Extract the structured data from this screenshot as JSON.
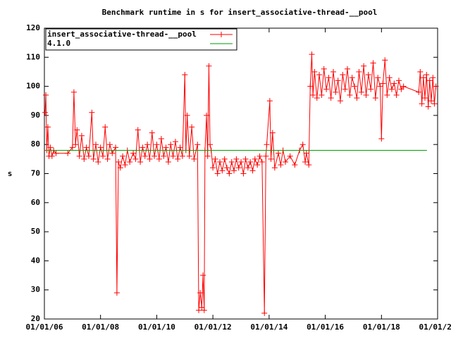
{
  "chart_data": {
    "type": "line",
    "title": "Benchmark runtime in s for insert_associative-thread-__pool",
    "y_label": "s",
    "xlim": [
      "2006-01-01",
      "2020-01-01"
    ],
    "xticks": [
      {
        "value": "2006-01-01",
        "label": "01/01/06"
      },
      {
        "value": "2008-01-01",
        "label": "01/01/08"
      },
      {
        "value": "2010-01-01",
        "label": "01/01/10"
      },
      {
        "value": "2012-01-01",
        "label": "01/01/12"
      },
      {
        "value": "2014-01-01",
        "label": "01/01/14"
      },
      {
        "value": "2016-01-01",
        "label": "01/01/16"
      },
      {
        "value": "2018-01-01",
        "label": "01/01/18"
      },
      {
        "value": "2020-01-01",
        "label": "01/01/20"
      }
    ],
    "ylim": [
      20,
      120
    ],
    "yticks": [
      20,
      30,
      40,
      50,
      60,
      70,
      80,
      90,
      100,
      110,
      120
    ],
    "legend": "top-left",
    "series": [
      {
        "name": "insert_associative-thread-__pool",
        "color": "#ff0000",
        "marker": "plus",
        "x": [
          "2006-01-10",
          "2006-01-20",
          "2006-02-01",
          "2006-02-15",
          "2006-03-01",
          "2006-03-20",
          "2006-04-10",
          "2006-05-01",
          "2006-06-01",
          "2006-11-01",
          "2007-01-01",
          "2007-01-20",
          "2007-02-10",
          "2007-03-01",
          "2007-04-01",
          "2007-05-01",
          "2007-06-01",
          "2007-07-01",
          "2007-08-01",
          "2007-09-10",
          "2007-10-01",
          "2007-11-01",
          "2007-12-01",
          "2008-01-01",
          "2008-02-01",
          "2008-03-01",
          "2008-04-01",
          "2008-05-01",
          "2008-06-01",
          "2008-07-15",
          "2008-08-01",
          "2008-08-20",
          "2008-09-15",
          "2008-10-15",
          "2008-11-15",
          "2008-12-15",
          "2009-01-15",
          "2009-03-01",
          "2009-04-01",
          "2009-05-01",
          "2009-06-01",
          "2009-07-01",
          "2009-08-01",
          "2009-09-01",
          "2009-10-01",
          "2009-11-01",
          "2009-12-01",
          "2010-01-01",
          "2010-02-01",
          "2010-03-01",
          "2010-04-01",
          "2010-05-01",
          "2010-06-01",
          "2010-07-01",
          "2010-08-01",
          "2010-09-01",
          "2010-10-01",
          "2010-11-01",
          "2010-12-01",
          "2011-01-01",
          "2011-01-15",
          "2011-02-01",
          "2011-03-01",
          "2011-04-01",
          "2011-05-01",
          "2011-06-15",
          "2011-07-01",
          "2011-07-20",
          "2011-08-10",
          "2011-08-25",
          "2011-09-10",
          "2011-09-20",
          "2011-10-10",
          "2011-10-25",
          "2011-11-10",
          "2011-11-25",
          "2011-12-10",
          "2012-01-01",
          "2012-02-01",
          "2012-03-01",
          "2012-04-01",
          "2012-05-01",
          "2012-06-01",
          "2012-07-01",
          "2012-08-01",
          "2012-09-01",
          "2012-10-01",
          "2012-11-01",
          "2012-12-01",
          "2013-01-01",
          "2013-02-01",
          "2013-03-01",
          "2013-04-01",
          "2013-05-01",
          "2013-06-01",
          "2013-07-01",
          "2013-08-01",
          "2013-09-01",
          "2013-10-01",
          "2013-11-01",
          "2013-11-20",
          "2013-12-01",
          "2014-01-10",
          "2014-01-25",
          "2014-02-15",
          "2014-03-15",
          "2014-05-01",
          "2014-06-01",
          "2014-07-01",
          "2014-08-01",
          "2014-10-01",
          "2014-12-01",
          "2015-02-01",
          "2015-03-15",
          "2015-04-15",
          "2015-05-01",
          "2015-06-01",
          "2015-06-20",
          "2015-07-10",
          "2015-07-25",
          "2015-08-15",
          "2015-09-15",
          "2015-10-15",
          "2015-11-15",
          "2015-12-15",
          "2016-01-15",
          "2016-02-15",
          "2016-03-15",
          "2016-04-15",
          "2016-05-15",
          "2016-06-15",
          "2016-07-15",
          "2016-08-15",
          "2016-09-15",
          "2016-10-15",
          "2016-11-15",
          "2016-12-15",
          "2017-01-15",
          "2017-02-15",
          "2017-03-15",
          "2017-04-15",
          "2017-05-15",
          "2017-06-15",
          "2017-07-15",
          "2017-08-15",
          "2017-09-15",
          "2017-10-15",
          "2017-11-15",
          "2017-12-15",
          "2018-01-01",
          "2018-01-20",
          "2018-02-15",
          "2018-03-15",
          "2018-04-15",
          "2018-05-15",
          "2018-06-15",
          "2018-07-15",
          "2018-08-15",
          "2018-09-15",
          "2018-10-15",
          "2019-05-01",
          "2019-05-20",
          "2019-06-10",
          "2019-07-01",
          "2019-07-20",
          "2019-08-10",
          "2019-09-01",
          "2019-09-20",
          "2019-10-10",
          "2019-11-01",
          "2019-11-20",
          "2019-12-10"
        ],
        "values": [
          91,
          97,
          78,
          86,
          76,
          79,
          76,
          78,
          77,
          77,
          79,
          98,
          80,
          85,
          76,
          83,
          75,
          79,
          76,
          91,
          75,
          80,
          74,
          79,
          76,
          86,
          75,
          80,
          77,
          79,
          29,
          74,
          72,
          76,
          73,
          78,
          74,
          77,
          75,
          85,
          74,
          79,
          76,
          80,
          75,
          84,
          76,
          80,
          75,
          82,
          76,
          79,
          74,
          80,
          76,
          81,
          75,
          79,
          76,
          104,
          78,
          90,
          76,
          86,
          75,
          80,
          23,
          29,
          24,
          35,
          23,
          78,
          90,
          76,
          107,
          80,
          78,
          72,
          75,
          70,
          74,
          71,
          75,
          72,
          70,
          74,
          71,
          75,
          72,
          74,
          70,
          75,
          72,
          74,
          71,
          75,
          73,
          76,
          74,
          22,
          76,
          80,
          95,
          75,
          84,
          72,
          77,
          73,
          78,
          74,
          76,
          73,
          78,
          80,
          74,
          77,
          73,
          100,
          111,
          97,
          105,
          96,
          104,
          97,
          106,
          99,
          103,
          96,
          105,
          98,
          102,
          95,
          104,
          99,
          106,
          97,
          103,
          100,
          96,
          105,
          98,
          107,
          97,
          104,
          99,
          108,
          96,
          103,
          100,
          82,
          101,
          109,
          97,
          103,
          99,
          101,
          97,
          102,
          99,
          100,
          98,
          105,
          94,
          103,
          96,
          104,
          93,
          102,
          95,
          103,
          94,
          100
        ]
      },
      {
        "name": "4.1.0",
        "color": "#00a000",
        "marker": "none",
        "x": [
          "2006-01-20",
          "2019-08-15"
        ],
        "values": [
          78,
          78
        ]
      }
    ]
  }
}
